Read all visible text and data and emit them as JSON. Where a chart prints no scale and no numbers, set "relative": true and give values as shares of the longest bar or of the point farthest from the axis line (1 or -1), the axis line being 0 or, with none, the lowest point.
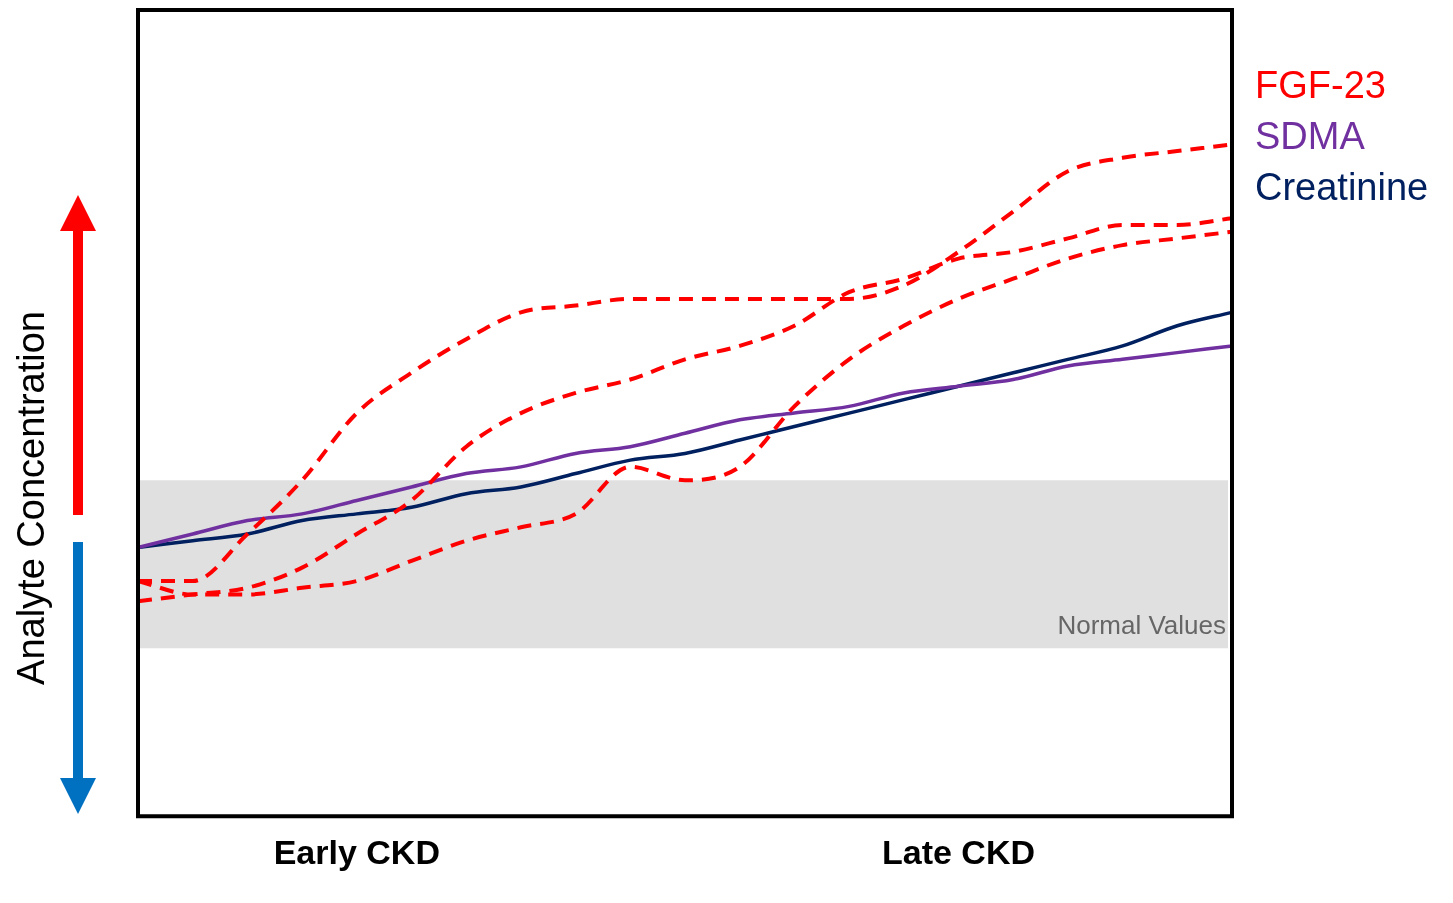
{
  "chart_data": {
    "type": "line",
    "relative": true,
    "ylabel": "Analyte Concentration",
    "categories": [
      null,
      null,
      null,
      null,
      "Early CKD",
      null,
      null,
      null,
      null,
      null,
      null,
      null,
      null,
      null,
      null,
      "Late CKD",
      null,
      null,
      null,
      null,
      null
    ],
    "grid": false,
    "legend": "right",
    "bands": [
      {
        "axis": "y",
        "from": 0.25,
        "to": 0.5,
        "label": "Normal Values",
        "color": "#e0e0e0"
      }
    ],
    "series": [
      {
        "name": "FGF-23",
        "color": "#ff0000",
        "line_style": "dashed",
        "values": [
          0.35,
          0.35,
          0.42,
          0.5,
          0.6,
          0.66,
          0.71,
          0.75,
          0.76,
          0.77,
          0.77,
          0.77,
          0.77,
          0.77,
          0.79,
          0.84,
          0.9,
          0.96,
          0.98,
          0.99,
          1
        ]
      },
      {
        "color": "#ff0000",
        "line_style": "dashed",
        "values": [
          0.32,
          0.33,
          0.34,
          0.37,
          0.42,
          0.47,
          0.55,
          0.6,
          0.63,
          0.65,
          0.68,
          0.7,
          0.73,
          0.78,
          0.8,
          0.83,
          0.84,
          0.86,
          0.88,
          0.88,
          0.89
        ]
      },
      {
        "color": "#ff0000",
        "line_style": "dashed",
        "values": [
          0.35,
          0.33,
          0.33,
          0.34,
          0.35,
          0.38,
          0.41,
          0.43,
          0.45,
          0.52,
          0.5,
          0.52,
          0.61,
          0.68,
          0.73,
          0.77,
          0.8,
          0.83,
          0.85,
          0.86,
          0.87
        ]
      },
      {
        "name": "SDMA",
        "color": "#7030a0",
        "line_style": "solid",
        "values": [
          0.4,
          0.42,
          0.44,
          0.45,
          0.47,
          0.49,
          0.51,
          0.52,
          0.54,
          0.55,
          0.57,
          0.59,
          0.6,
          0.61,
          0.63,
          0.64,
          0.65,
          0.67,
          0.68,
          0.69,
          0.7
        ]
      },
      {
        "name": "Creatinine",
        "color": "#002060",
        "line_style": "solid",
        "values": [
          0.4,
          0.41,
          0.42,
          0.44,
          0.45,
          0.46,
          0.48,
          0.49,
          0.51,
          0.53,
          0.54,
          0.56,
          0.58,
          0.6,
          0.62,
          0.64,
          0.66,
          0.68,
          0.7,
          0.73,
          0.75
        ]
      }
    ]
  }
}
